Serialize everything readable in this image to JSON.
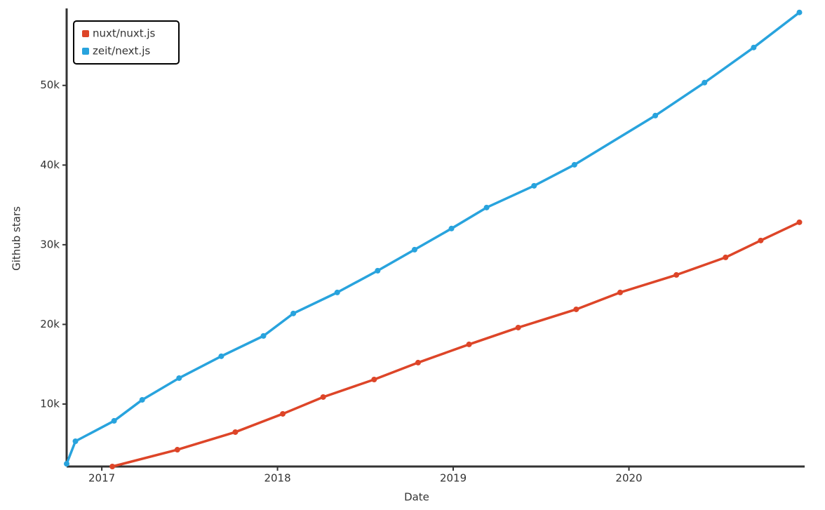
{
  "chart_data": {
    "type": "line",
    "x_label": "Date",
    "y_label": "Github stars",
    "legend": "top-left",
    "xlim": [
      2016.8,
      2021.0
    ],
    "xticks": [
      2017,
      2018,
      2019,
      2020
    ],
    "ylim": [
      2160,
      59400
    ],
    "yticks": [
      {
        "value": 10000,
        "label": "10k"
      },
      {
        "value": 20000,
        "label": "20k"
      },
      {
        "value": 30000,
        "label": "30k"
      },
      {
        "value": 40000,
        "label": "40k"
      },
      {
        "value": 50000,
        "label": "50k"
      }
    ],
    "series": [
      {
        "name": "nuxt/nuxt.js",
        "color": "#dd4528",
        "x": [
          2017.06,
          2017.43,
          2017.76,
          2018.03,
          2018.26,
          2018.55,
          2018.8,
          2019.09,
          2019.37,
          2019.7,
          2019.95,
          2020.27,
          2020.55,
          2020.75,
          2020.97
        ],
        "values": [
          2160,
          4270,
          6480,
          8770,
          10880,
          13080,
          15200,
          17490,
          19600,
          21890,
          24010,
          26210,
          28410,
          30530,
          32820
        ]
      },
      {
        "name": "zeit/next.js",
        "color": "#28a3dd",
        "x": [
          2016.8,
          2016.85,
          2017.07,
          2017.23,
          2017.44,
          2017.68,
          2017.92,
          2018.09,
          2018.34,
          2018.57,
          2018.78,
          2018.99,
          2019.19,
          2019.46,
          2019.69,
          2020.15,
          2020.43,
          2020.71,
          2020.97
        ],
        "values": [
          2500,
          5330,
          7890,
          10530,
          13260,
          16000,
          18550,
          21370,
          24010,
          26740,
          29380,
          32030,
          34670,
          37400,
          40040,
          46210,
          50350,
          54760,
          59160
        ]
      }
    ]
  }
}
